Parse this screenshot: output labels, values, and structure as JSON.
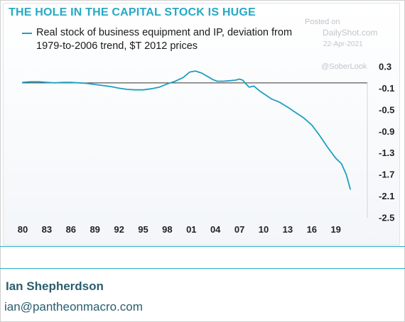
{
  "header": {
    "title": "THE HOLE IN THE CAPITAL STOCK IS HUGE",
    "legend_line1": "Real stock of business equipment and IP, deviation from",
    "legend_line2": "1979-to-2006 trend, $T 2012 prices"
  },
  "watermark": {
    "posted_on": "Posted on",
    "site": "DailyShot.com",
    "date": "22-Apr-2021",
    "handle": "@SoberLook"
  },
  "footer": {
    "author": "Ian Shepherdson",
    "email": "ian@pantheonmacro.com"
  },
  "colors": {
    "accent": "#26a9c5",
    "series": "#1e9fc0",
    "footer_text": "#2a5e6e"
  },
  "chart_data": {
    "type": "line",
    "title": "THE HOLE IN THE CAPITAL STOCK IS HUGE",
    "xlabel": "",
    "ylabel": "",
    "xlim": [
      1980,
      2023
    ],
    "ylim": [
      -2.5,
      0.3
    ],
    "y_axis_side": "right",
    "zero_line": true,
    "grid": false,
    "legend_position": "top-left",
    "x_tick_labels": [
      "80",
      "83",
      "86",
      "89",
      "92",
      "95",
      "98",
      "01",
      "04",
      "07",
      "10",
      "13",
      "16",
      "19"
    ],
    "x_tick_values": [
      1980,
      1983,
      1986,
      1989,
      1992,
      1995,
      1998,
      2001,
      2004,
      2007,
      2010,
      2013,
      2016,
      2019
    ],
    "y_tick_labels": [
      "0.3",
      "-0.1",
      "-0.5",
      "-0.9",
      "-1.3",
      "-1.7",
      "-2.1",
      "-2.5"
    ],
    "y_tick_values": [
      0.3,
      -0.1,
      -0.5,
      -0.9,
      -1.3,
      -1.7,
      -2.1,
      -2.5
    ],
    "series": [
      {
        "name": "Real stock of business equipment and IP, deviation from 1979-to-2006 trend, $T 2012 prices",
        "x": [
          1980,
          1981,
          1982,
          1983,
          1984,
          1985,
          1986,
          1987,
          1988,
          1989,
          1990,
          1991,
          1992,
          1993,
          1994,
          1995,
          1996,
          1997,
          1998,
          1999,
          2000,
          2000.8,
          2001.5,
          2002.3,
          2003,
          2003.7,
          2004.2,
          2005,
          2005.8,
          2006.5,
          2007,
          2007.4,
          2007.8,
          2008.2,
          2008.8,
          2009.5,
          2010,
          2011,
          2012,
          2013,
          2014,
          2015,
          2016,
          2017,
          2018,
          2019,
          2019.7,
          2020.3,
          2020.8
        ],
        "y": [
          0.01,
          0.02,
          0.02,
          0.01,
          0.0,
          0.01,
          0.01,
          0.0,
          -0.01,
          -0.03,
          -0.05,
          -0.07,
          -0.1,
          -0.12,
          -0.13,
          -0.13,
          -0.11,
          -0.08,
          -0.02,
          0.03,
          0.1,
          0.2,
          0.22,
          0.18,
          0.12,
          0.06,
          0.03,
          0.03,
          0.04,
          0.05,
          0.07,
          0.05,
          -0.02,
          -0.08,
          -0.06,
          -0.15,
          -0.2,
          -0.3,
          -0.36,
          -0.45,
          -0.55,
          -0.65,
          -0.78,
          -0.98,
          -1.2,
          -1.4,
          -1.5,
          -1.7,
          -1.97
        ]
      }
    ]
  }
}
